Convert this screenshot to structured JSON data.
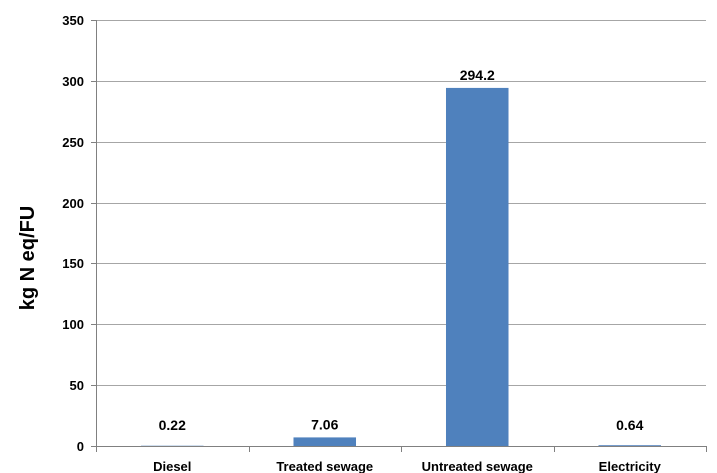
{
  "chart_data": {
    "type": "bar",
    "title": "",
    "xlabel": "",
    "ylabel": "kg N eq/FU",
    "categories": [
      "Diesel",
      "Treated sewage",
      "Untreated sewage",
      "Electricity"
    ],
    "values": [
      0.22,
      7.06,
      294.2,
      0.64
    ],
    "data_labels": [
      "0.22",
      "7.06",
      "294.2",
      "0.64"
    ],
    "ylim": [
      0,
      350
    ],
    "y_ticks": [
      0,
      50,
      100,
      150,
      200,
      250,
      300,
      350
    ],
    "grid": true,
    "legend": "none",
    "colors": {
      "bar": "#4F81BD",
      "grid": "#A6A6A6",
      "axis": "#808080"
    }
  }
}
